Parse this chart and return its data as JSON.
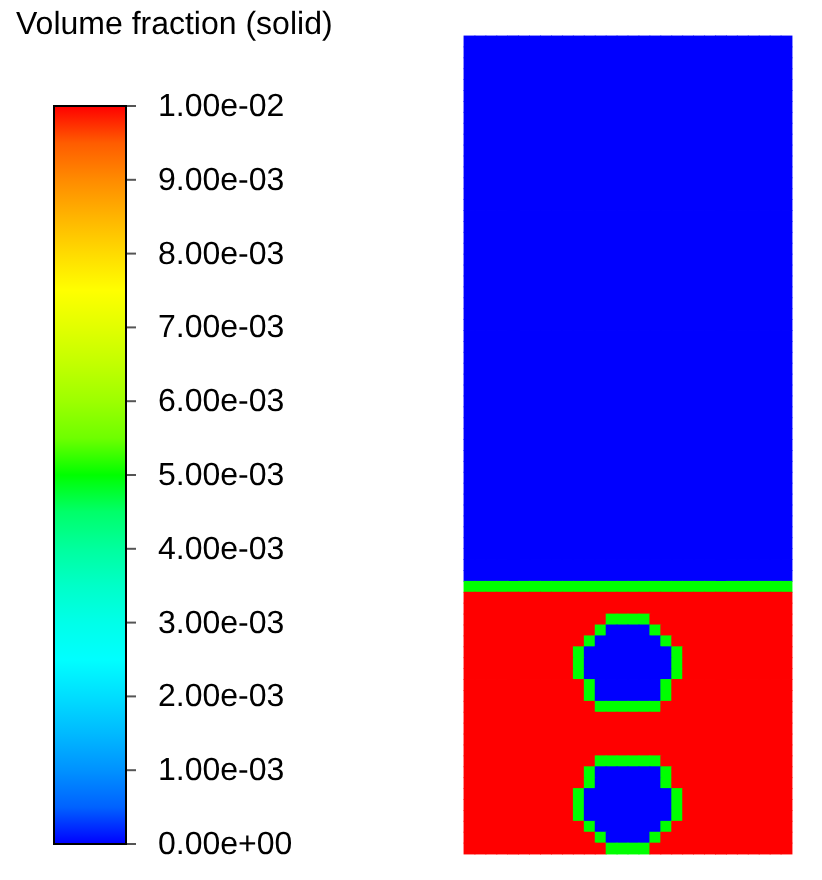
{
  "chart_data": {
    "type": "heatmap",
    "clabel": "Volume fraction (solid)",
    "categories": [
      null,
      null,
      null,
      null,
      null,
      null,
      null,
      null,
      null,
      null,
      null,
      null,
      null,
      null,
      null,
      null,
      null,
      null,
      null,
      null,
      null,
      null,
      null,
      null,
      null,
      null,
      null,
      null,
      null,
      null
    ],
    "y_categories": [
      null,
      null,
      null,
      null,
      null,
      null,
      null,
      null,
      null,
      null,
      null,
      null,
      null,
      null,
      null,
      null,
      null,
      null,
      null,
      null,
      null,
      null,
      null,
      null,
      null,
      null,
      null,
      null,
      null,
      null,
      null,
      null,
      null,
      null,
      null,
      null,
      null,
      null,
      null,
      null,
      null,
      null,
      null,
      null,
      null,
      null,
      null,
      null,
      null,
      null,
      null,
      null,
      null,
      null,
      null,
      null,
      null,
      null,
      null,
      null,
      null,
      null,
      null,
      null,
      null,
      null,
      null,
      null,
      null,
      null,
      null,
      null,
      null,
      null,
      null
    ],
    "tick_labels": false,
    "clim": [
      0,
      0.01
    ],
    "cticks": [
      {
        "value": 0,
        "label": "0.00e+00"
      },
      {
        "value": 0.001,
        "label": "1.00e-03"
      },
      {
        "value": 0.002,
        "label": "2.00e-03"
      },
      {
        "value": 0.003,
        "label": "3.00e-03"
      },
      {
        "value": 0.004,
        "label": "4.00e-03"
      },
      {
        "value": 0.005,
        "label": "5.00e-03"
      },
      {
        "value": 0.006,
        "label": "6.00e-03"
      },
      {
        "value": 0.007,
        "label": "7.00e-03"
      },
      {
        "value": 0.008,
        "label": "8.00e-03"
      },
      {
        "value": 0.009,
        "label": "9.00e-03"
      },
      {
        "value": 0.01,
        "label": "1.00e-02"
      }
    ],
    "cells": [
      [
        0,
        0,
        0,
        0,
        0,
        0,
        0,
        0,
        0,
        0,
        0,
        0,
        0,
        0,
        0,
        0,
        0,
        0,
        0,
        0,
        0,
        0,
        0,
        0,
        0,
        0,
        0,
        0,
        0,
        0
      ],
      [
        0,
        0,
        0,
        0,
        0,
        0,
        0,
        0,
        0,
        0,
        0,
        0,
        0,
        0,
        0,
        0,
        0,
        0,
        0,
        0,
        0,
        0,
        0,
        0,
        0,
        0,
        0,
        0,
        0,
        0
      ],
      [
        0,
        0,
        0,
        0,
        0,
        0,
        0,
        0,
        0,
        0,
        0,
        0,
        0,
        0,
        0,
        0,
        0,
        0,
        0,
        0,
        0,
        0,
        0,
        0,
        0,
        0,
        0,
        0,
        0,
        0
      ],
      [
        0,
        0,
        0,
        0,
        0,
        0,
        0,
        0,
        0,
        0,
        0,
        0,
        0,
        0,
        0,
        0,
        0,
        0,
        0,
        0,
        0,
        0,
        0,
        0,
        0,
        0,
        0,
        0,
        0,
        0
      ],
      [
        0,
        0,
        0,
        0,
        0,
        0,
        0,
        0,
        0,
        0,
        0,
        0,
        0,
        0,
        0,
        0,
        0,
        0,
        0,
        0,
        0,
        0,
        0,
        0,
        0,
        0,
        0,
        0,
        0,
        0
      ],
      [
        0,
        0,
        0,
        0,
        0,
        0,
        0,
        0,
        0,
        0,
        0,
        0,
        0,
        0,
        0,
        0,
        0,
        0,
        0,
        0,
        0,
        0,
        0,
        0,
        0,
        0,
        0,
        0,
        0,
        0
      ],
      [
        0,
        0,
        0,
        0,
        0,
        0,
        0,
        0,
        0,
        0,
        0,
        0,
        0,
        0,
        0,
        0,
        0,
        0,
        0,
        0,
        0,
        0,
        0,
        0,
        0,
        0,
        0,
        0,
        0,
        0
      ],
      [
        0,
        0,
        0,
        0,
        0,
        0,
        0,
        0,
        0,
        0,
        0,
        0,
        0,
        0,
        0,
        0,
        0,
        0,
        0,
        0,
        0,
        0,
        0,
        0,
        0,
        0,
        0,
        0,
        0,
        0
      ],
      [
        0,
        0,
        0,
        0,
        0,
        0,
        0,
        0,
        0,
        0,
        0,
        0,
        0,
        0,
        0,
        0,
        0,
        0,
        0,
        0,
        0,
        0,
        0,
        0,
        0,
        0,
        0,
        0,
        0,
        0
      ],
      [
        0,
        0,
        0,
        0,
        0,
        0,
        0,
        0,
        0,
        0,
        0,
        0,
        0,
        0,
        0,
        0,
        0,
        0,
        0,
        0,
        0,
        0,
        0,
        0,
        0,
        0,
        0,
        0,
        0,
        0
      ],
      [
        0,
        0,
        0,
        0,
        0,
        0,
        0,
        0,
        0,
        0,
        0,
        0,
        0,
        0,
        0,
        0,
        0,
        0,
        0,
        0,
        0,
        0,
        0,
        0,
        0,
        0,
        0,
        0,
        0,
        0
      ],
      [
        0,
        0,
        0,
        0,
        0,
        0,
        0,
        0,
        0,
        0,
        0,
        0,
        0,
        0,
        0,
        0,
        0,
        0,
        0,
        0,
        0,
        0,
        0,
        0,
        0,
        0,
        0,
        0,
        0,
        0
      ],
      [
        0,
        0,
        0,
        0,
        0,
        0,
        0,
        0,
        0,
        0,
        0,
        0,
        0,
        0,
        0,
        0,
        0,
        0,
        0,
        0,
        0,
        0,
        0,
        0,
        0,
        0,
        0,
        0,
        0,
        0
      ],
      [
        0,
        0,
        0,
        0,
        0,
        0,
        0,
        0,
        0,
        0,
        0,
        0,
        0,
        0,
        0,
        0,
        0,
        0,
        0,
        0,
        0,
        0,
        0,
        0,
        0,
        0,
        0,
        0,
        0,
        0
      ],
      [
        0,
        0,
        0,
        0,
        0,
        0,
        0,
        0,
        0,
        0,
        0,
        0,
        0,
        0,
        0,
        0,
        0,
        0,
        0,
        0,
        0,
        0,
        0,
        0,
        0,
        0,
        0,
        0,
        0,
        0
      ],
      [
        0,
        0,
        0,
        0,
        0,
        0,
        0,
        0,
        0,
        0,
        0,
        0,
        0,
        0,
        0,
        0,
        0,
        0,
        0,
        0,
        0,
        0,
        0,
        0,
        0,
        0,
        0,
        0,
        0,
        0
      ],
      [
        0,
        0,
        0,
        0,
        0,
        0,
        0,
        0,
        0,
        0,
        0,
        0,
        0,
        0,
        0,
        0,
        0,
        0,
        0,
        0,
        0,
        0,
        0,
        0,
        0,
        0,
        0,
        0,
        0,
        0
      ],
      [
        0,
        0,
        0,
        0,
        0,
        0,
        0,
        0,
        0,
        0,
        0,
        0,
        0,
        0,
        0,
        0,
        0,
        0,
        0,
        0,
        0,
        0,
        0,
        0,
        0,
        0,
        0,
        0,
        0,
        0
      ],
      [
        0,
        0,
        0,
        0,
        0,
        0,
        0,
        0,
        0,
        0,
        0,
        0,
        0,
        0,
        0,
        0,
        0,
        0,
        0,
        0,
        0,
        0,
        0,
        0,
        0,
        0,
        0,
        0,
        0,
        0
      ],
      [
        0,
        0,
        0,
        0,
        0,
        0,
        0,
        0,
        0,
        0,
        0,
        0,
        0,
        0,
        0,
        0,
        0,
        0,
        0,
        0,
        0,
        0,
        0,
        0,
        0,
        0,
        0,
        0,
        0,
        0
      ],
      [
        0,
        0,
        0,
        0,
        0,
        0,
        0,
        0,
        0,
        0,
        0,
        0,
        0,
        0,
        0,
        0,
        0,
        0,
        0,
        0,
        0,
        0,
        0,
        0,
        0,
        0,
        0,
        0,
        0,
        0
      ],
      [
        0,
        0,
        0,
        0,
        0,
        0,
        0,
        0,
        0,
        0,
        0,
        0,
        0,
        0,
        0,
        0,
        0,
        0,
        0,
        0,
        0,
        0,
        0,
        0,
        0,
        0,
        0,
        0,
        0,
        0
      ],
      [
        0,
        0,
        0,
        0,
        0,
        0,
        0,
        0,
        0,
        0,
        0,
        0,
        0,
        0,
        0,
        0,
        0,
        0,
        0,
        0,
        0,
        0,
        0,
        0,
        0,
        0,
        0,
        0,
        0,
        0
      ],
      [
        0,
        0,
        0,
        0,
        0,
        0,
        0,
        0,
        0,
        0,
        0,
        0,
        0,
        0,
        0,
        0,
        0,
        0,
        0,
        0,
        0,
        0,
        0,
        0,
        0,
        0,
        0,
        0,
        0,
        0
      ],
      [
        0,
        0,
        0,
        0,
        0,
        0,
        0,
        0,
        0,
        0,
        0,
        0,
        0,
        0,
        0,
        0,
        0,
        0,
        0,
        0,
        0,
        0,
        0,
        0,
        0,
        0,
        0,
        0,
        0,
        0
      ],
      [
        0,
        0,
        0,
        0,
        0,
        0,
        0,
        0,
        0,
        0,
        0,
        0,
        0,
        0,
        0,
        0,
        0,
        0,
        0,
        0,
        0,
        0,
        0,
        0,
        0,
        0,
        0,
        0,
        0,
        0
      ],
      [
        0,
        0,
        0,
        0,
        0,
        0,
        0,
        0,
        0,
        0,
        0,
        0,
        0,
        0,
        0,
        0,
        0,
        0,
        0,
        0,
        0,
        0,
        0,
        0,
        0,
        0,
        0,
        0,
        0,
        0
      ],
      [
        0,
        0,
        0,
        0,
        0,
        0,
        0,
        0,
        0,
        0,
        0,
        0,
        0,
        0,
        0,
        0,
        0,
        0,
        0,
        0,
        0,
        0,
        0,
        0,
        0,
        0,
        0,
        0,
        0,
        0
      ],
      [
        0,
        0,
        0,
        0,
        0,
        0,
        0,
        0,
        0,
        0,
        0,
        0,
        0,
        0,
        0,
        0,
        0,
        0,
        0,
        0,
        0,
        0,
        0,
        0,
        0,
        0,
        0,
        0,
        0,
        0
      ],
      [
        0,
        0,
        0,
        0,
        0,
        0,
        0,
        0,
        0,
        0,
        0,
        0,
        0,
        0,
        0,
        0,
        0,
        0,
        0,
        0,
        0,
        0,
        0,
        0,
        0,
        0,
        0,
        0,
        0,
        0
      ],
      [
        0,
        0,
        0,
        0,
        0,
        0,
        0,
        0,
        0,
        0,
        0,
        0,
        0,
        0,
        0,
        0,
        0,
        0,
        0,
        0,
        0,
        0,
        0,
        0,
        0,
        0,
        0,
        0,
        0,
        0
      ],
      [
        0,
        0,
        0,
        0,
        0,
        0,
        0,
        0,
        0,
        0,
        0,
        0,
        0,
        0,
        0,
        0,
        0,
        0,
        0,
        0,
        0,
        0,
        0,
        0,
        0,
        0,
        0,
        0,
        0,
        0
      ],
      [
        0,
        0,
        0,
        0,
        0,
        0,
        0,
        0,
        0,
        0,
        0,
        0,
        0,
        0,
        0,
        0,
        0,
        0,
        0,
        0,
        0,
        0,
        0,
        0,
        0,
        0,
        0,
        0,
        0,
        0
      ],
      [
        0,
        0,
        0,
        0,
        0,
        0,
        0,
        0,
        0,
        0,
        0,
        0,
        0,
        0,
        0,
        0,
        0,
        0,
        0,
        0,
        0,
        0,
        0,
        0,
        0,
        0,
        0,
        0,
        0,
        0
      ],
      [
        0,
        0,
        0,
        0,
        0,
        0,
        0,
        0,
        0,
        0,
        0,
        0,
        0,
        0,
        0,
        0,
        0,
        0,
        0,
        0,
        0,
        0,
        0,
        0,
        0,
        0,
        0,
        0,
        0,
        0
      ],
      [
        0,
        0,
        0,
        0,
        0,
        0,
        0,
        0,
        0,
        0,
        0,
        0,
        0,
        0,
        0,
        0,
        0,
        0,
        0,
        0,
        0,
        0,
        0,
        0,
        0,
        0,
        0,
        0,
        0,
        0
      ],
      [
        0,
        0,
        0,
        0,
        0,
        0,
        0,
        0,
        0,
        0,
        0,
        0,
        0,
        0,
        0,
        0,
        0,
        0,
        0,
        0,
        0,
        0,
        0,
        0,
        0,
        0,
        0,
        0,
        0,
        0
      ],
      [
        0,
        0,
        0,
        0,
        0,
        0,
        0,
        0,
        0,
        0,
        0,
        0,
        0,
        0,
        0,
        0,
        0,
        0,
        0,
        0,
        0,
        0,
        0,
        0,
        0,
        0,
        0,
        0,
        0,
        0
      ],
      [
        0,
        0,
        0,
        0,
        0,
        0,
        0,
        0,
        0,
        0,
        0,
        0,
        0,
        0,
        0,
        0,
        0,
        0,
        0,
        0,
        0,
        0,
        0,
        0,
        0,
        0,
        0,
        0,
        0,
        0
      ],
      [
        0,
        0,
        0,
        0,
        0,
        0,
        0,
        0,
        0,
        0,
        0,
        0,
        0,
        0,
        0,
        0,
        0,
        0,
        0,
        0,
        0,
        0,
        0,
        0,
        0,
        0,
        0,
        0,
        0,
        0
      ],
      [
        0,
        0,
        0,
        0,
        0,
        0,
        0,
        0,
        0,
        0,
        0,
        0,
        0,
        0,
        0,
        0,
        0,
        0,
        0,
        0,
        0,
        0,
        0,
        0,
        0,
        0,
        0,
        0,
        0,
        0
      ],
      [
        0,
        0,
        0,
        0,
        0,
        0,
        0,
        0,
        0,
        0,
        0,
        0,
        0,
        0,
        0,
        0,
        0,
        0,
        0,
        0,
        0,
        0,
        0,
        0,
        0,
        0,
        0,
        0,
        0,
        0
      ],
      [
        0,
        0,
        0,
        0,
        0,
        0,
        0,
        0,
        0,
        0,
        0,
        0,
        0,
        0,
        0,
        0,
        0,
        0,
        0,
        0,
        0,
        0,
        0,
        0,
        0,
        0,
        0,
        0,
        0,
        0
      ],
      [
        0,
        0,
        0,
        0,
        0,
        0,
        0,
        0,
        0,
        0,
        0,
        0,
        0,
        0,
        0,
        0,
        0,
        0,
        0,
        0,
        0,
        0,
        0,
        0,
        0,
        0,
        0,
        0,
        0,
        0
      ],
      [
        0,
        0,
        0,
        0,
        0,
        0,
        0,
        0,
        0,
        0,
        0,
        0,
        0,
        0,
        0,
        0,
        0,
        0,
        0,
        0,
        0,
        0,
        0,
        0,
        0,
        0,
        0,
        0,
        0,
        0
      ],
      [
        0,
        0,
        0,
        0,
        0,
        0,
        0,
        0,
        0,
        0,
        0,
        0,
        0,
        0,
        0,
        0,
        0,
        0,
        0,
        0,
        0,
        0,
        0,
        0,
        0,
        0,
        0,
        0,
        0,
        0
      ],
      [
        0,
        0,
        0,
        0,
        0,
        0,
        0,
        0,
        0,
        0,
        0,
        0,
        0,
        0,
        0,
        0,
        0,
        0,
        0,
        0,
        0,
        0,
        0,
        0,
        0,
        0,
        0,
        0,
        0,
        0
      ],
      [
        0,
        0,
        0,
        0,
        0,
        0,
        0,
        0,
        0,
        0,
        0,
        0,
        0,
        0,
        0,
        0,
        0,
        0,
        0,
        0,
        0,
        0,
        0,
        0,
        0,
        0,
        0,
        0,
        0,
        0
      ],
      [
        0,
        0,
        0,
        0,
        0,
        0,
        0,
        0,
        0,
        0,
        0,
        0,
        0,
        0,
        0,
        0,
        0,
        0,
        0,
        0,
        0,
        0,
        0,
        0,
        0,
        0,
        0,
        0,
        0,
        0
      ],
      [
        0,
        0,
        0,
        0,
        0,
        0,
        0,
        0,
        0,
        0,
        0,
        0,
        0,
        0,
        0,
        0,
        0,
        0,
        0,
        0,
        0,
        0,
        0,
        0,
        0,
        0,
        0,
        0,
        0,
        0
      ],
      [
        0.005,
        0.005,
        0.005,
        0.005,
        0.005,
        0.005,
        0.005,
        0.005,
        0.005,
        0.005,
        0.005,
        0.005,
        0.005,
        0.005,
        0.005,
        0.005,
        0.005,
        0.005,
        0.005,
        0.005,
        0.005,
        0.005,
        0.005,
        0.005,
        0.005,
        0.005,
        0.005,
        0.005,
        0.005,
        0.005
      ],
      [
        0.01,
        0.01,
        0.01,
        0.01,
        0.01,
        0.01,
        0.01,
        0.01,
        0.01,
        0.01,
        0.01,
        0.01,
        0.01,
        0.01,
        0.01,
        0.01,
        0.01,
        0.01,
        0.01,
        0.01,
        0.01,
        0.01,
        0.01,
        0.01,
        0.01,
        0.01,
        0.01,
        0.01,
        0.01,
        0.01
      ],
      [
        0.01,
        0.01,
        0.01,
        0.01,
        0.01,
        0.01,
        0.01,
        0.01,
        0.01,
        0.01,
        0.01,
        0.01,
        0.01,
        0.01,
        0.01,
        0.01,
        0.01,
        0.01,
        0.01,
        0.01,
        0.01,
        0.01,
        0.01,
        0.01,
        0.01,
        0.01,
        0.01,
        0.01,
        0.01,
        0.01
      ],
      [
        0.01,
        0.01,
        0.01,
        0.01,
        0.01,
        0.01,
        0.01,
        0.01,
        0.01,
        0.01,
        0.01,
        0.01,
        0.01,
        0.005,
        0.005,
        0.005,
        0.005,
        0.01,
        0.01,
        0.01,
        0.01,
        0.01,
        0.01,
        0.01,
        0.01,
        0.01,
        0.01,
        0.01,
        0.01,
        0.01
      ],
      [
        0.01,
        0.01,
        0.01,
        0.01,
        0.01,
        0.01,
        0.01,
        0.01,
        0.01,
        0.01,
        0.01,
        0.01,
        0.005,
        0,
        0,
        0,
        0,
        0.005,
        0.01,
        0.01,
        0.01,
        0.01,
        0.01,
        0.01,
        0.01,
        0.01,
        0.01,
        0.01,
        0.01,
        0.01
      ],
      [
        0.01,
        0.01,
        0.01,
        0.01,
        0.01,
        0.01,
        0.01,
        0.01,
        0.01,
        0.01,
        0.01,
        0.005,
        0,
        0,
        0,
        0,
        0,
        0,
        0.005,
        0.01,
        0.01,
        0.01,
        0.01,
        0.01,
        0.01,
        0.01,
        0.01,
        0.01,
        0.01,
        0.01
      ],
      [
        0.01,
        0.01,
        0.01,
        0.01,
        0.01,
        0.01,
        0.01,
        0.01,
        0.01,
        0.01,
        0.005,
        0,
        0,
        0,
        0,
        0,
        0,
        0,
        0,
        0.005,
        0.01,
        0.01,
        0.01,
        0.01,
        0.01,
        0.01,
        0.01,
        0.01,
        0.01,
        0.01
      ],
      [
        0.01,
        0.01,
        0.01,
        0.01,
        0.01,
        0.01,
        0.01,
        0.01,
        0.01,
        0.01,
        0.005,
        0,
        0,
        0,
        0,
        0,
        0,
        0,
        0,
        0.005,
        0.01,
        0.01,
        0.01,
        0.01,
        0.01,
        0.01,
        0.01,
        0.01,
        0.01,
        0.01
      ],
      [
        0.01,
        0.01,
        0.01,
        0.01,
        0.01,
        0.01,
        0.01,
        0.01,
        0.01,
        0.01,
        0.005,
        0,
        0,
        0,
        0,
        0,
        0,
        0,
        0,
        0.005,
        0.01,
        0.01,
        0.01,
        0.01,
        0.01,
        0.01,
        0.01,
        0.01,
        0.01,
        0.01
      ],
      [
        0.01,
        0.01,
        0.01,
        0.01,
        0.01,
        0.01,
        0.01,
        0.01,
        0.01,
        0.01,
        0.01,
        0.005,
        0,
        0,
        0,
        0,
        0,
        0,
        0.005,
        0.01,
        0.01,
        0.01,
        0.01,
        0.01,
        0.01,
        0.01,
        0.01,
        0.01,
        0.01,
        0.01
      ],
      [
        0.01,
        0.01,
        0.01,
        0.01,
        0.01,
        0.01,
        0.01,
        0.01,
        0.01,
        0.01,
        0.01,
        0.005,
        0,
        0,
        0,
        0,
        0,
        0,
        0.005,
        0.01,
        0.01,
        0.01,
        0.01,
        0.01,
        0.01,
        0.01,
        0.01,
        0.01,
        0.01,
        0.01
      ],
      [
        0.01,
        0.01,
        0.01,
        0.01,
        0.01,
        0.01,
        0.01,
        0.01,
        0.01,
        0.01,
        0.01,
        0.01,
        0.005,
        0.005,
        0.005,
        0.005,
        0.005,
        0.005,
        0.01,
        0.01,
        0.01,
        0.01,
        0.01,
        0.01,
        0.01,
        0.01,
        0.01,
        0.01,
        0.01,
        0.01
      ],
      [
        0.01,
        0.01,
        0.01,
        0.01,
        0.01,
        0.01,
        0.01,
        0.01,
        0.01,
        0.01,
        0.01,
        0.01,
        0.01,
        0.01,
        0.01,
        0.01,
        0.01,
        0.01,
        0.01,
        0.01,
        0.01,
        0.01,
        0.01,
        0.01,
        0.01,
        0.01,
        0.01,
        0.01,
        0.01,
        0.01
      ],
      [
        0.01,
        0.01,
        0.01,
        0.01,
        0.01,
        0.01,
        0.01,
        0.01,
        0.01,
        0.01,
        0.01,
        0.01,
        0.01,
        0.01,
        0.01,
        0.01,
        0.01,
        0.01,
        0.01,
        0.01,
        0.01,
        0.01,
        0.01,
        0.01,
        0.01,
        0.01,
        0.01,
        0.01,
        0.01,
        0.01
      ],
      [
        0.01,
        0.01,
        0.01,
        0.01,
        0.01,
        0.01,
        0.01,
        0.01,
        0.01,
        0.01,
        0.01,
        0.01,
        0.01,
        0.01,
        0.01,
        0.01,
        0.01,
        0.01,
        0.01,
        0.01,
        0.01,
        0.01,
        0.01,
        0.01,
        0.01,
        0.01,
        0.01,
        0.01,
        0.01,
        0.01
      ],
      [
        0.01,
        0.01,
        0.01,
        0.01,
        0.01,
        0.01,
        0.01,
        0.01,
        0.01,
        0.01,
        0.01,
        0.01,
        0.01,
        0.01,
        0.01,
        0.01,
        0.01,
        0.01,
        0.01,
        0.01,
        0.01,
        0.01,
        0.01,
        0.01,
        0.01,
        0.01,
        0.01,
        0.01,
        0.01,
        0.01
      ],
      [
        0.01,
        0.01,
        0.01,
        0.01,
        0.01,
        0.01,
        0.01,
        0.01,
        0.01,
        0.01,
        0.01,
        0.01,
        0.005,
        0.005,
        0.005,
        0.005,
        0.005,
        0.005,
        0.01,
        0.01,
        0.01,
        0.01,
        0.01,
        0.01,
        0.01,
        0.01,
        0.01,
        0.01,
        0.01,
        0.01
      ],
      [
        0.01,
        0.01,
        0.01,
        0.01,
        0.01,
        0.01,
        0.01,
        0.01,
        0.01,
        0.01,
        0.01,
        0.005,
        0,
        0,
        0,
        0,
        0,
        0,
        0.005,
        0.01,
        0.01,
        0.01,
        0.01,
        0.01,
        0.01,
        0.01,
        0.01,
        0.01,
        0.01,
        0.01
      ],
      [
        0.01,
        0.01,
        0.01,
        0.01,
        0.01,
        0.01,
        0.01,
        0.01,
        0.01,
        0.01,
        0.01,
        0.005,
        0,
        0,
        0,
        0,
        0,
        0,
        0.005,
        0.01,
        0.01,
        0.01,
        0.01,
        0.01,
        0.01,
        0.01,
        0.01,
        0.01,
        0.01,
        0.01
      ],
      [
        0.01,
        0.01,
        0.01,
        0.01,
        0.01,
        0.01,
        0.01,
        0.01,
        0.01,
        0.01,
        0.005,
        0,
        0,
        0,
        0,
        0,
        0,
        0,
        0,
        0.005,
        0.01,
        0.01,
        0.01,
        0.01,
        0.01,
        0.01,
        0.01,
        0.01,
        0.01,
        0.01
      ],
      [
        0.01,
        0.01,
        0.01,
        0.01,
        0.01,
        0.01,
        0.01,
        0.01,
        0.01,
        0.01,
        0.005,
        0,
        0,
        0,
        0,
        0,
        0,
        0,
        0,
        0.005,
        0.01,
        0.01,
        0.01,
        0.01,
        0.01,
        0.01,
        0.01,
        0.01,
        0.01,
        0.01
      ],
      [
        0.01,
        0.01,
        0.01,
        0.01,
        0.01,
        0.01,
        0.01,
        0.01,
        0.01,
        0.01,
        0.005,
        0,
        0,
        0,
        0,
        0,
        0,
        0,
        0,
        0.005,
        0.01,
        0.01,
        0.01,
        0.01,
        0.01,
        0.01,
        0.01,
        0.01,
        0.01,
        0.01
      ],
      [
        0.01,
        0.01,
        0.01,
        0.01,
        0.01,
        0.01,
        0.01,
        0.01,
        0.01,
        0.01,
        0.01,
        0.005,
        0,
        0,
        0,
        0,
        0,
        0,
        0.005,
        0.01,
        0.01,
        0.01,
        0.01,
        0.01,
        0.01,
        0.01,
        0.01,
        0.01,
        0.01,
        0.01
      ],
      [
        0.01,
        0.01,
        0.01,
        0.01,
        0.01,
        0.01,
        0.01,
        0.01,
        0.01,
        0.01,
        0.01,
        0.01,
        0.005,
        0,
        0,
        0,
        0,
        0.005,
        0.01,
        0.01,
        0.01,
        0.01,
        0.01,
        0.01,
        0.01,
        0.01,
        0.01,
        0.01,
        0.01,
        0.01
      ],
      [
        0.01,
        0.01,
        0.01,
        0.01,
        0.01,
        0.01,
        0.01,
        0.01,
        0.01,
        0.01,
        0.01,
        0.01,
        0.01,
        0.005,
        0.005,
        0.005,
        0.005,
        0.01,
        0.01,
        0.01,
        0.01,
        0.01,
        0.01,
        0.01,
        0.01,
        0.01,
        0.01,
        0.01,
        0.01,
        0.01
      ]
    ]
  }
}
